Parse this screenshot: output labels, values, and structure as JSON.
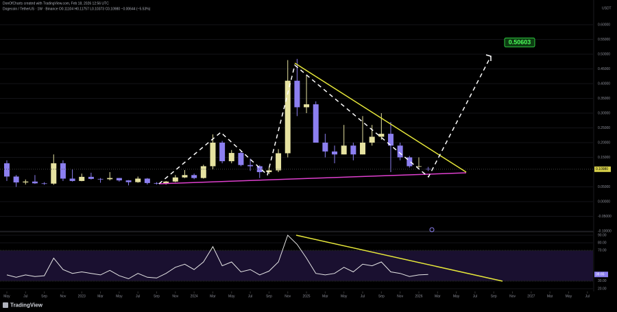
{
  "header": {
    "author_line": "DonOfCharts created with TradingView.com, Feb 18, 2026 12:56 UTC",
    "symbol_line": "Dogecoin / TetherUS · 1W · Binance  O0.11104 H0.11757 L0.10373 C0.10980 −0.00644 (−5.53%)",
    "currency": "USDT",
    "brand": "TradingView"
  },
  "chart_data": [
    {
      "type": "candlestick",
      "x": [
        0,
        1,
        2,
        3,
        4,
        5,
        6,
        7,
        8,
        9,
        10,
        11,
        12,
        13,
        14,
        15,
        16,
        17,
        18,
        19,
        20,
        21,
        22,
        23,
        24,
        25,
        26,
        27,
        28,
        29,
        30,
        31,
        32,
        33,
        34,
        35,
        36,
        37,
        38,
        39,
        40,
        41,
        42,
        43,
        44,
        45
      ],
      "open": [
        0.13,
        0.085,
        0.065,
        0.068,
        0.062,
        0.061,
        0.13,
        0.078,
        0.07,
        0.084,
        0.077,
        0.076,
        0.08,
        0.072,
        0.066,
        0.078,
        0.063,
        0.061,
        0.068,
        0.082,
        0.09,
        0.08,
        0.12,
        0.2,
        0.137,
        0.165,
        0.124,
        0.12,
        0.1,
        0.106,
        0.164,
        0.41,
        0.32,
        0.33,
        0.2,
        0.17,
        0.16,
        0.19,
        0.16,
        0.2,
        0.22,
        0.23,
        0.19,
        0.15,
        0.12,
        0.11104
      ],
      "high": [
        0.14,
        0.09,
        0.075,
        0.09,
        0.066,
        0.16,
        0.14,
        0.11,
        0.095,
        0.098,
        0.08,
        0.1,
        0.08,
        0.073,
        0.085,
        0.08,
        0.066,
        0.07,
        0.09,
        0.107,
        0.095,
        0.125,
        0.228,
        0.206,
        0.175,
        0.17,
        0.146,
        0.124,
        0.115,
        0.178,
        0.48,
        0.484,
        0.43,
        0.34,
        0.23,
        0.19,
        0.26,
        0.2,
        0.29,
        0.26,
        0.3,
        0.27,
        0.2,
        0.155,
        0.15,
        0.11757
      ],
      "low": [
        0.07,
        0.05,
        0.058,
        0.06,
        0.057,
        0.057,
        0.07,
        0.068,
        0.069,
        0.075,
        0.064,
        0.072,
        0.068,
        0.055,
        0.064,
        0.058,
        0.058,
        0.058,
        0.066,
        0.08,
        0.076,
        0.078,
        0.11,
        0.13,
        0.13,
        0.12,
        0.104,
        0.08,
        0.093,
        0.1,
        0.15,
        0.29,
        0.3,
        0.2,
        0.15,
        0.13,
        0.16,
        0.14,
        0.16,
        0.19,
        0.21,
        0.1,
        0.14,
        0.115,
        0.115,
        0.10373
      ],
      "close": [
        0.085,
        0.065,
        0.068,
        0.062,
        0.061,
        0.13,
        0.078,
        0.07,
        0.084,
        0.077,
        0.076,
        0.08,
        0.072,
        0.066,
        0.078,
        0.063,
        0.061,
        0.068,
        0.082,
        0.09,
        0.08,
        0.12,
        0.2,
        0.137,
        0.165,
        0.124,
        0.12,
        0.1,
        0.106,
        0.164,
        0.41,
        0.32,
        0.33,
        0.2,
        0.17,
        0.16,
        0.19,
        0.16,
        0.2,
        0.22,
        0.23,
        0.19,
        0.15,
        0.12,
        0.12,
        0.1098
      ],
      "last_close_label": "0.10980",
      "up_color": "#e6e2a0",
      "down_color": "#8c7ff0",
      "xlim": [
        -0.73,
        62.6
      ],
      "ylim": [
        -0.1023,
        0.6512
      ],
      "yticks": [
        {
          "value": 0.6,
          "label": "0.60000"
        },
        {
          "value": 0.55,
          "label": "0.55000"
        },
        {
          "value": 0.5,
          "label": "0.50000"
        },
        {
          "value": 0.45,
          "label": "0.45000"
        },
        {
          "value": 0.4,
          "label": "0.40000"
        },
        {
          "value": 0.35,
          "label": "0.35000"
        },
        {
          "value": 0.3,
          "label": "0.30000"
        },
        {
          "value": 0.25,
          "label": "0.25000"
        },
        {
          "value": 0.2,
          "label": "0.20000"
        },
        {
          "value": 0.15,
          "label": "0.15000"
        },
        {
          "value": 0.05,
          "label": "0.05000"
        },
        {
          "value": 0,
          "label": "0.00000"
        },
        {
          "value": -0.05,
          "label": "-0.05000"
        },
        {
          "value": -0.1,
          "label": "-0.10000"
        }
      ],
      "xticks": [
        {
          "value": 0,
          "label": "May"
        },
        {
          "value": 2,
          "label": "Jul"
        },
        {
          "value": 4,
          "label": "Sep"
        },
        {
          "value": 6,
          "label": "Nov"
        },
        {
          "value": 8,
          "label": "2023"
        },
        {
          "value": 10,
          "label": "Mar"
        },
        {
          "value": 12,
          "label": "May"
        },
        {
          "value": 14,
          "label": "Jul"
        },
        {
          "value": 16,
          "label": "Sep"
        },
        {
          "value": 18,
          "label": "Nov"
        },
        {
          "value": 20,
          "label": "2024"
        },
        {
          "value": 22,
          "label": "Mar"
        },
        {
          "value": 24,
          "label": "May"
        },
        {
          "value": 26,
          "label": "Jul"
        },
        {
          "value": 28,
          "label": "Sep"
        },
        {
          "value": 30,
          "label": "Nov"
        },
        {
          "value": 32,
          "label": "2025"
        },
        {
          "value": 34,
          "label": "Mar"
        },
        {
          "value": 36,
          "label": "May"
        },
        {
          "value": 38,
          "label": "Jul"
        },
        {
          "value": 40,
          "label": "Sep"
        },
        {
          "value": 42,
          "label": "Nov"
        },
        {
          "value": 44,
          "label": "2026"
        },
        {
          "value": 46,
          "label": "Mar"
        },
        {
          "value": 48,
          "label": "May"
        },
        {
          "value": 50,
          "label": "Jul"
        },
        {
          "value": 52,
          "label": "Sep"
        },
        {
          "value": 54,
          "label": "Nov"
        },
        {
          "value": 56,
          "label": "2027"
        },
        {
          "value": 58,
          "label": "Mar"
        },
        {
          "value": 60,
          "label": "May"
        },
        {
          "value": 62,
          "label": "Jul"
        }
      ],
      "annotations": [
        {
          "text": "0.50603",
          "value": 0.50603
        }
      ]
    },
    {
      "type": "line",
      "x": [
        0,
        1,
        2,
        3,
        4,
        5,
        6,
        7,
        8,
        9,
        10,
        11,
        12,
        13,
        14,
        15,
        16,
        17,
        18,
        19,
        20,
        21,
        22,
        23,
        24,
        25,
        26,
        27,
        28,
        29,
        30,
        31,
        32,
        33,
        34,
        35,
        36,
        37,
        38,
        39,
        40,
        41,
        42,
        43,
        44,
        45
      ],
      "values": [
        38,
        35,
        38,
        36,
        37,
        60,
        45,
        40,
        42,
        40,
        38,
        44,
        37,
        33,
        40,
        35,
        34,
        40,
        48,
        52,
        45,
        55,
        75,
        50,
        55,
        42,
        45,
        38,
        43,
        55,
        90,
        78,
        60,
        40,
        38,
        40,
        48,
        42,
        52,
        50,
        55,
        42,
        40,
        36,
        38,
        38.65
      ],
      "value_labels": [
        "38",
        "35",
        "38",
        "36",
        "37",
        "60",
        "45",
        "40",
        "42",
        "40",
        "38",
        "44",
        "37",
        "33",
        "40",
        "35",
        "34",
        "40",
        "48",
        "52",
        "45",
        "55",
        "75",
        "50",
        "55",
        "42",
        "45",
        "38",
        "43",
        "55",
        "90",
        "78",
        "60",
        "40",
        "38",
        "40",
        "48",
        "42",
        "52",
        "50",
        "55",
        "42",
        "40",
        "36",
        "38",
        "38.65"
      ],
      "color": "#e8e8e8",
      "band": [
        30,
        70
      ],
      "xlim": [
        -0.73,
        62.6
      ],
      "ylim": [
        16.4,
        92.7
      ],
      "yticks": [
        {
          "value": 90,
          "label": "90.00"
        },
        {
          "value": 80,
          "label": "80.00"
        },
        {
          "value": 70,
          "label": "70.00"
        },
        {
          "value": 30,
          "label": "30.00"
        },
        {
          "value": 20,
          "label": "20.00"
        }
      ]
    }
  ]
}
